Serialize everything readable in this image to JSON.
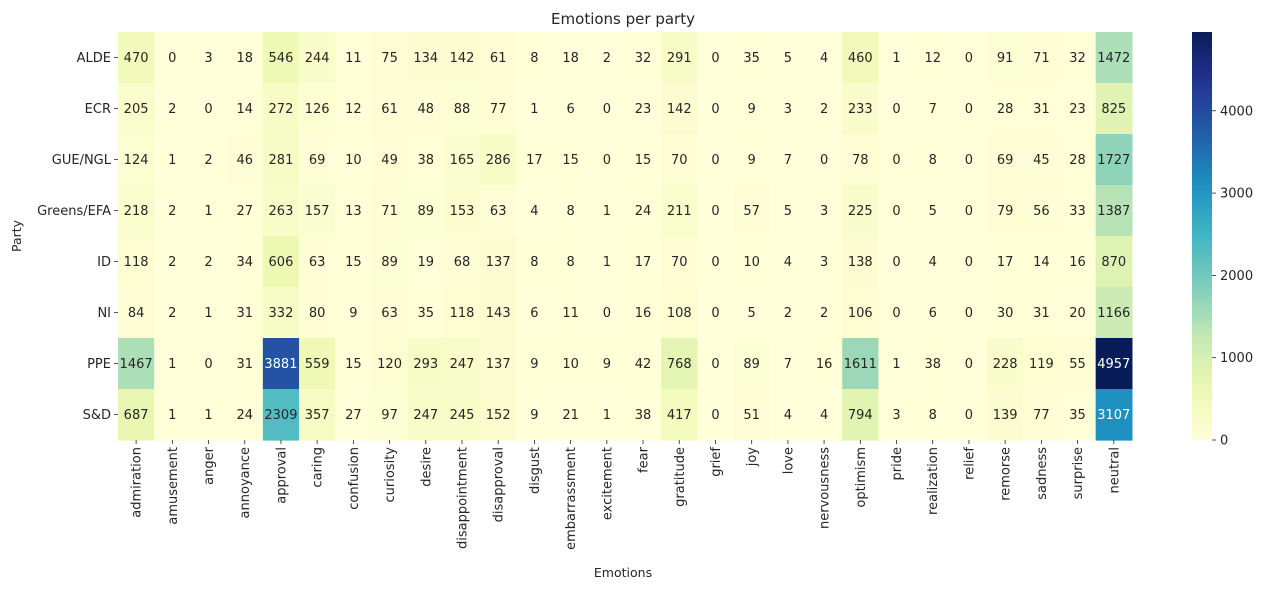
{
  "chart_data": {
    "type": "heatmap",
    "title": "Emotions per party",
    "xlabel": "Emotions",
    "ylabel": "Party",
    "colormap": "YlGnBu",
    "colorbar": {
      "min": 0,
      "max": 4957,
      "ticks": [
        0,
        1000,
        2000,
        3000,
        4000
      ]
    },
    "rows": [
      "ALDE",
      "ECR",
      "GUE/NGL",
      "Greens/EFA",
      "ID",
      "NI",
      "PPE",
      "S&D"
    ],
    "columns": [
      "admiration",
      "amusement",
      "anger",
      "annoyance",
      "approval",
      "caring",
      "confusion",
      "curiosity",
      "desire",
      "disappointment",
      "disapproval",
      "disgust",
      "embarrassment",
      "excitement",
      "fear",
      "gratitude",
      "grief",
      "joy",
      "love",
      "nervousness",
      "optimism",
      "pride",
      "realization",
      "relief",
      "remorse",
      "sadness",
      "surprise",
      "neutral"
    ],
    "values": [
      [
        470,
        0,
        3,
        18,
        546,
        244,
        11,
        75,
        134,
        142,
        61,
        8,
        18,
        2,
        32,
        291,
        0,
        35,
        5,
        4,
        460,
        1,
        12,
        0,
        91,
        71,
        32,
        1472
      ],
      [
        205,
        2,
        0,
        14,
        272,
        126,
        12,
        61,
        48,
        88,
        77,
        1,
        6,
        0,
        23,
        142,
        0,
        9,
        3,
        2,
        233,
        0,
        7,
        0,
        28,
        31,
        23,
        825
      ],
      [
        124,
        1,
        2,
        46,
        281,
        69,
        10,
        49,
        38,
        165,
        286,
        17,
        15,
        0,
        15,
        70,
        0,
        9,
        7,
        0,
        78,
        0,
        8,
        0,
        69,
        45,
        28,
        1727
      ],
      [
        218,
        2,
        1,
        27,
        263,
        157,
        13,
        71,
        89,
        153,
        63,
        4,
        8,
        1,
        24,
        211,
        0,
        57,
        5,
        3,
        225,
        0,
        5,
        0,
        79,
        56,
        33,
        1387
      ],
      [
        118,
        2,
        2,
        34,
        606,
        63,
        15,
        89,
        19,
        68,
        137,
        8,
        8,
        1,
        17,
        70,
        0,
        10,
        4,
        3,
        138,
        0,
        4,
        0,
        17,
        14,
        16,
        870
      ],
      [
        84,
        2,
        1,
        31,
        332,
        80,
        9,
        63,
        35,
        118,
        143,
        6,
        11,
        0,
        16,
        108,
        0,
        5,
        2,
        2,
        106,
        0,
        6,
        0,
        30,
        31,
        20,
        1166
      ],
      [
        1467,
        1,
        0,
        31,
        3881,
        559,
        15,
        120,
        293,
        247,
        137,
        9,
        10,
        9,
        42,
        768,
        0,
        89,
        7,
        16,
        1611,
        1,
        38,
        0,
        228,
        119,
        55,
        4957
      ],
      [
        687,
        1,
        1,
        24,
        2309,
        357,
        27,
        97,
        247,
        245,
        152,
        9,
        21,
        1,
        38,
        417,
        0,
        51,
        4,
        4,
        794,
        3,
        8,
        0,
        139,
        77,
        35,
        3107
      ]
    ]
  }
}
